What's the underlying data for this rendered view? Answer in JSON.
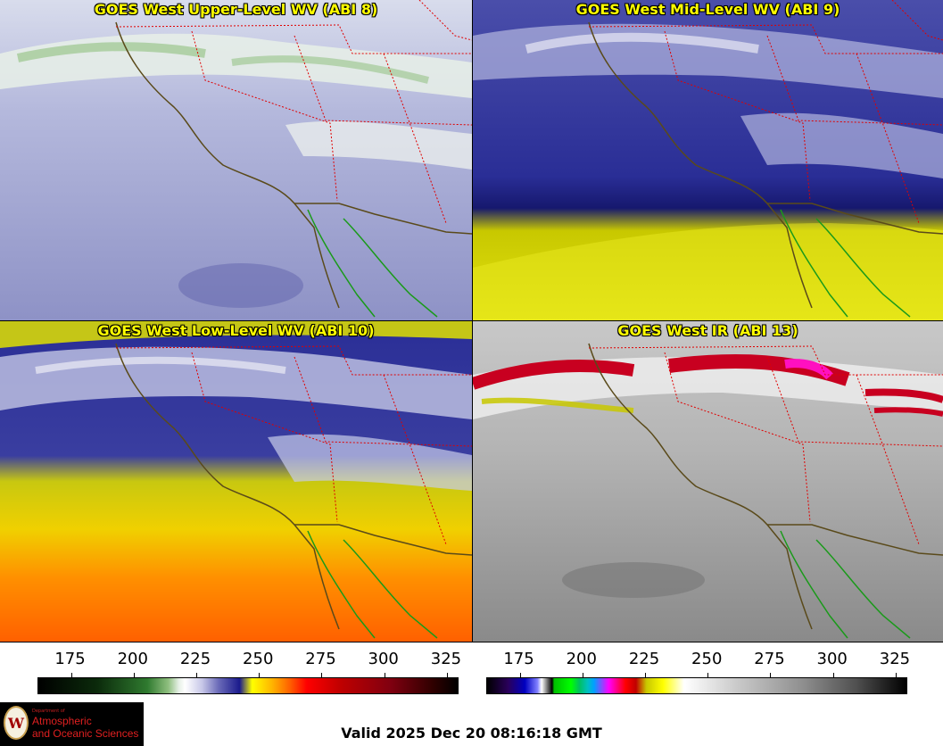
{
  "panels": [
    {
      "title": "GOES West Upper-Level WV (ABI 8)",
      "product": "upper-level water vapor"
    },
    {
      "title": "GOES West Mid-Level WV (ABI 9)",
      "product": "mid-level water vapor"
    },
    {
      "title": "GOES West Low-Level WV (ABI 10)",
      "product": "low-level water vapor"
    },
    {
      "title": "GOES West IR (ABI 13)",
      "product": "infrared"
    }
  ],
  "colorbars": {
    "wv": {
      "ticks": [
        "175",
        "200",
        "225",
        "250",
        "275",
        "300",
        "325"
      ],
      "range": [
        162,
        330
      ]
    },
    "ir": {
      "ticks": [
        "175",
        "200",
        "225",
        "250",
        "275",
        "300",
        "325"
      ],
      "range": [
        162,
        330
      ]
    }
  },
  "logo": {
    "department": "Department of",
    "line1": "Atmospheric",
    "line2": "and Oceanic Sciences",
    "seal_letter": "W"
  },
  "valid_text": "Valid 2025 Dec 20 08:16:18 GMT",
  "colors": {
    "title_text": "#ffff00",
    "state_borders": "#e00000",
    "coastline_us": "#5a4a1a",
    "coastline_mexico": "#1a9a1a"
  }
}
